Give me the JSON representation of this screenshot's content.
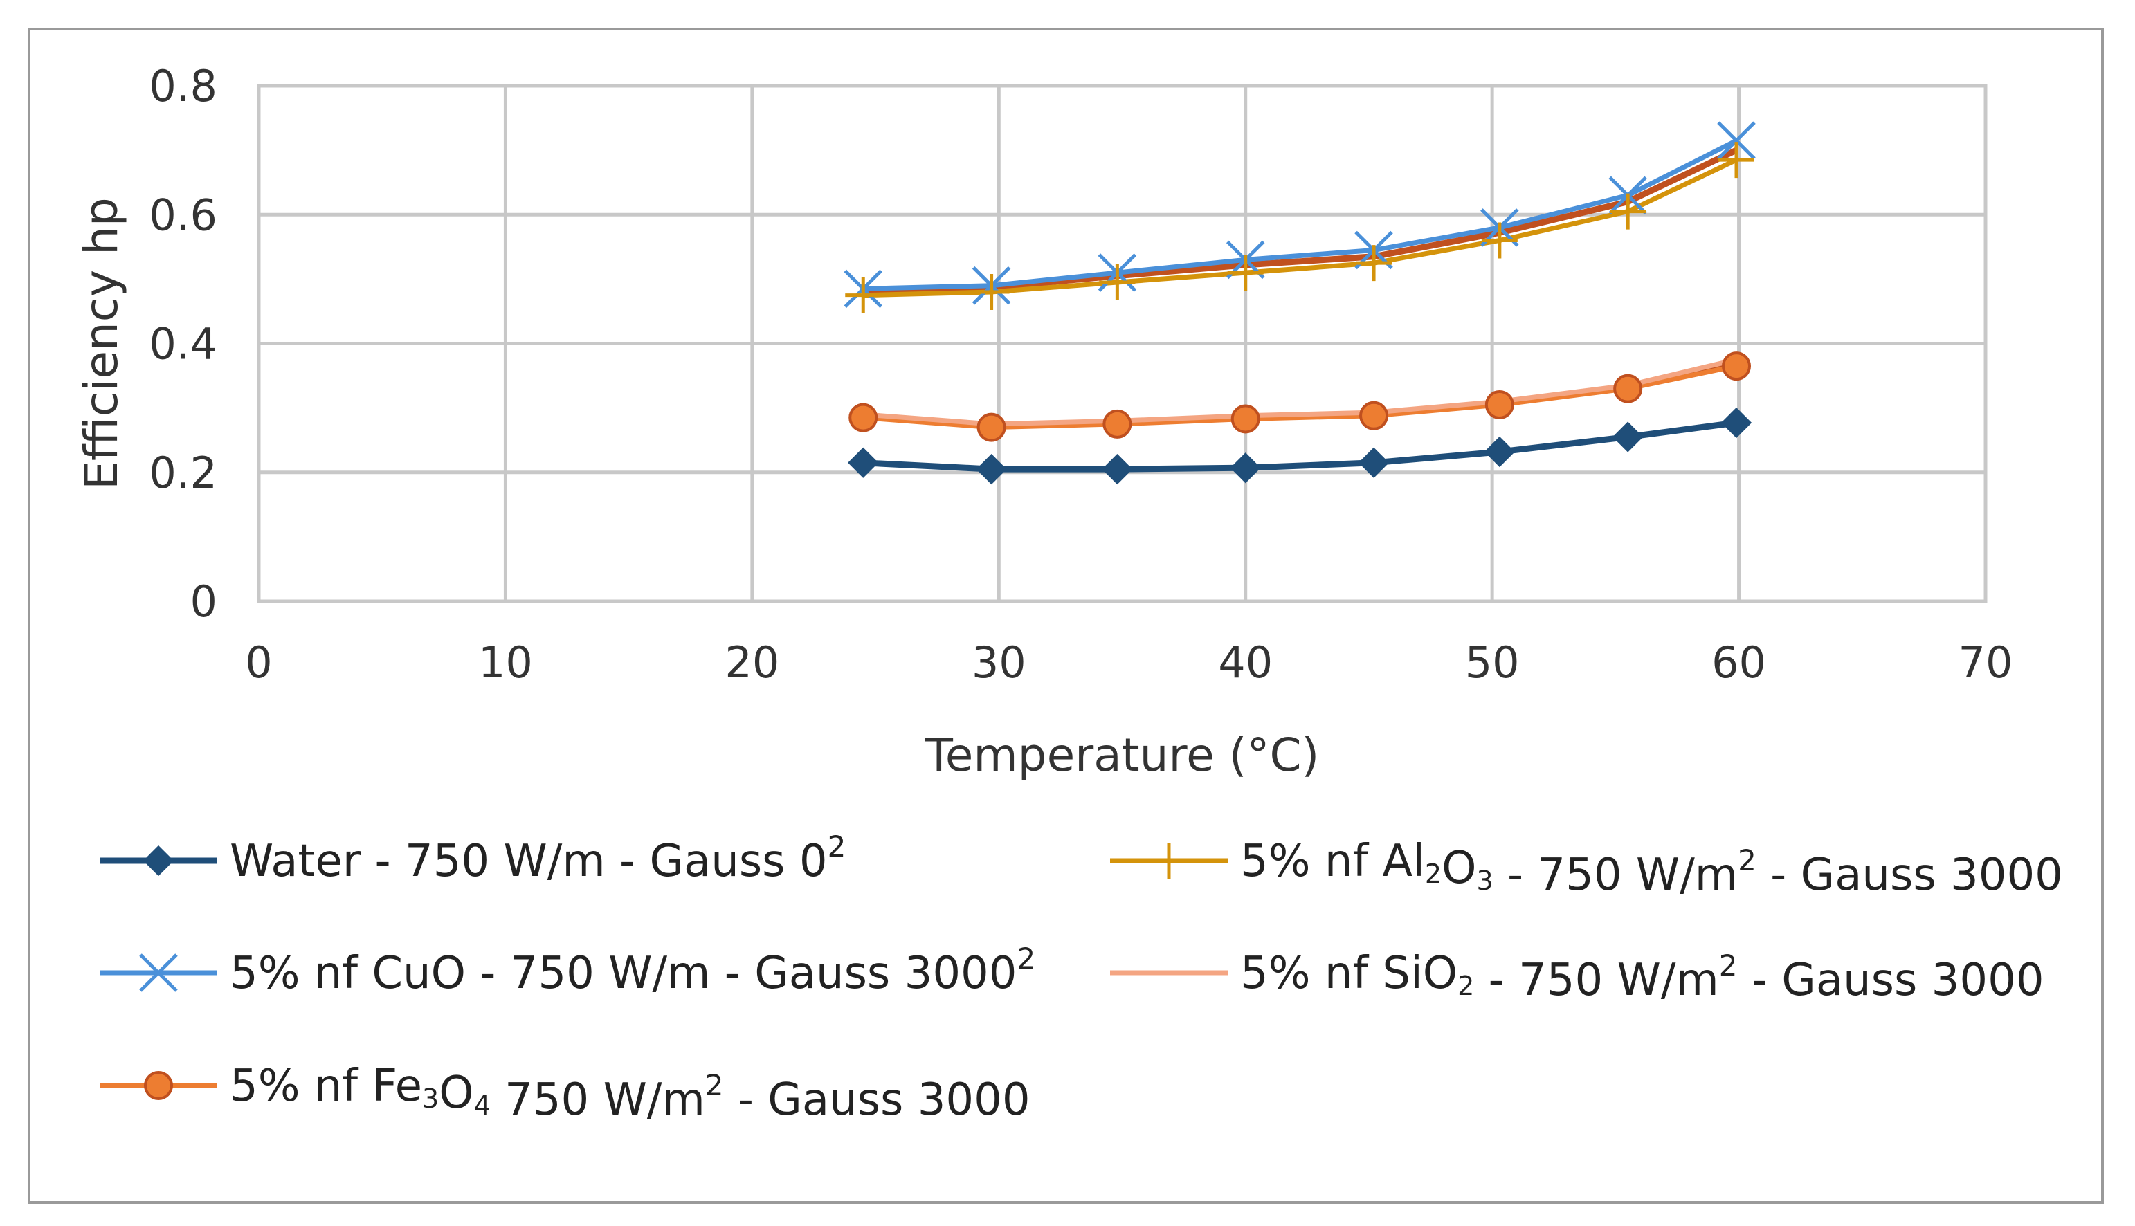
{
  "chart_data": {
    "type": "line",
    "title": "",
    "xlabel": "Temperature (°C)",
    "ylabel": "Efficiency hp",
    "xlim": [
      0,
      70
    ],
    "ylim": [
      0,
      0.8
    ],
    "x_ticks": [
      "0",
      "10",
      "20",
      "30",
      "40",
      "50",
      "60",
      "70"
    ],
    "y_ticks": [
      "0",
      "0.2",
      "0.4",
      "0.6",
      "0.8"
    ],
    "grid": true,
    "legend_position": "bottom",
    "x": [
      24.5,
      29.7,
      34.8,
      40.0,
      45.2,
      50.3,
      55.5,
      59.9
    ],
    "series": [
      {
        "name": "Water - 750 W/m2 - Gauss 0",
        "legend": {
          "pre": "Water - 750 W/m",
          "sup": "2",
          "post": "  - Gauss 0"
        },
        "color": "#1f4e79",
        "marker": "diamond",
        "values": [
          0.215,
          0.205,
          0.205,
          0.207,
          0.215,
          0.232,
          0.255,
          0.277
        ]
      },
      {
        "name": "5% nf CuO - 750 W/m2 - Gauss 3000",
        "legend": {
          "pre": "5% nf CuO - 750 W/m",
          "sup": "2",
          "post": "  - Gauss 3000"
        },
        "color": "#4a90d9",
        "marker": "x",
        "values": [
          0.485,
          0.49,
          0.51,
          0.53,
          0.545,
          0.58,
          0.63,
          0.715
        ]
      },
      {
        "name": "5% nf Fe3O4 750 W/m2 - Gauss 3000",
        "legend": {
          "pre": "5% nf Fe",
          "sub1": "3",
          "mid": "O",
          "sub2": "4",
          "post": " 750 W/m",
          "sup": "2",
          "post2": "  - Gauss 3000"
        },
        "color": "#ed7d31",
        "marker": "circle",
        "values": [
          0.285,
          0.27,
          0.275,
          0.283,
          0.288,
          0.305,
          0.33,
          0.365
        ]
      },
      {
        "name": "5% nf Al2O3 - 750 W/m2 - Gauss 3000",
        "legend": {
          "pre": "5% nf Al",
          "sub1": "2",
          "mid": "O",
          "sub2": "3",
          "post": "  - 750 W/m",
          "sup": "2",
          "post2": "  - Gauss 3000"
        },
        "color": "#d4930b",
        "marker": "plus",
        "values": [
          0.475,
          0.48,
          0.495,
          0.51,
          0.525,
          0.56,
          0.605,
          0.685
        ]
      },
      {
        "name": "5% nf SiO2 - 750 W/m2 - Gauss 3000",
        "legend": {
          "pre": "5% nf  SiO",
          "sub1": "2",
          "post": "  - 750 W/m",
          "sup": "2",
          "post2": "  - Gauss 3000"
        },
        "color": "#f4a582",
        "marker": "none",
        "values": [
          0.29,
          0.275,
          0.28,
          0.288,
          0.293,
          0.31,
          0.335,
          0.375
        ]
      }
    ],
    "extra_lines": [
      {
        "color": "#c0501f",
        "values": [
          0.48,
          0.487,
          0.505,
          0.522,
          0.535,
          0.572,
          0.62,
          0.7
        ]
      },
      {
        "color": "#c0501f",
        "values": [
          0.288,
          0.272,
          0.278,
          0.286,
          0.291,
          0.308,
          0.333,
          0.37
        ]
      }
    ]
  }
}
